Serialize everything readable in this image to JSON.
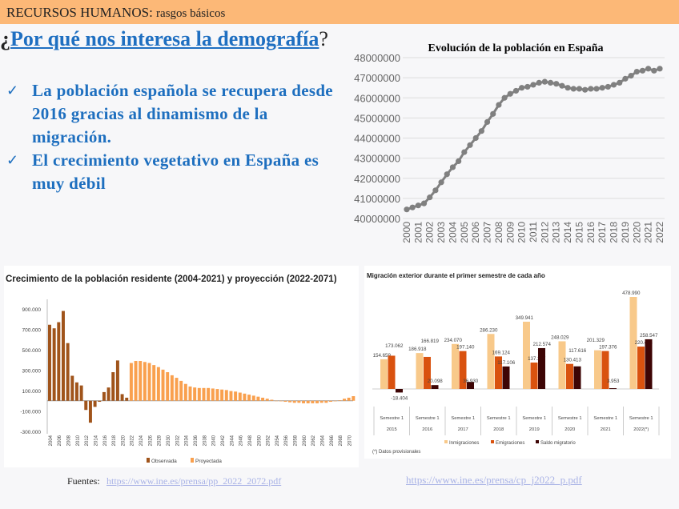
{
  "header": {
    "section": "RECURSOS HUMANOS:",
    "subtitle": "rasgos básicos",
    "bg": "#fcb877"
  },
  "slide_title": {
    "pre": "¿",
    "link": "Por qué nos interesa la demografía",
    "post": "?"
  },
  "bullets": [
    {
      "icon": "checkmark-icon",
      "text": "La población española se recupera desde 2016 gracias al dinamismo de la migración."
    },
    {
      "icon": "checkmark-icon",
      "text": "El crecimiento vegetativo en España es muy débil"
    }
  ],
  "sources": {
    "label": "Fuentes:",
    "link1": "https://www.ine.es/prensa/pp_2022_2072.pdf",
    "link2": "https://www.ine.es/prensa/cp_j2022_p.pdf"
  },
  "chart_data": [
    {
      "type": "line",
      "title": "Evolución de la población en España",
      "color": "#808080",
      "grid": true,
      "ylim": [
        40000000,
        48000000
      ],
      "yticks": [
        "48000000",
        "47000000",
        "46000000",
        "45000000",
        "44000000",
        "43000000",
        "42000000",
        "41000000",
        "40000000"
      ],
      "xticks": [
        "2000",
        "2001",
        "2002",
        "2003",
        "2004",
        "2005",
        "2006",
        "2007",
        "2008",
        "2009",
        "2010",
        "2011",
        "2012",
        "2013",
        "2014",
        "2015",
        "2016",
        "2017",
        "2018",
        "2019",
        "2020",
        "2021",
        "2022"
      ],
      "x": [
        2000,
        2000.5,
        2001,
        2001.5,
        2002,
        2002.5,
        2003,
        2003.5,
        2004,
        2004.5,
        2005,
        2005.5,
        2006,
        2006.5,
        2007,
        2007.5,
        2008,
        2008.5,
        2009,
        2009.5,
        2010,
        2010.5,
        2011,
        2011.5,
        2012,
        2012.5,
        2013,
        2013.5,
        2014,
        2014.5,
        2015,
        2015.5,
        2016,
        2016.5,
        2017,
        2017.5,
        2018,
        2018.5,
        2019,
        2019.5,
        2020,
        2020.5,
        2021,
        2021.5,
        2022
      ],
      "y": [
        40450000,
        40550000,
        40650000,
        40750000,
        41050000,
        41400000,
        41800000,
        42200000,
        42550000,
        42850000,
        43300000,
        43650000,
        44000000,
        44350000,
        44800000,
        45200000,
        45650000,
        46000000,
        46200000,
        46350000,
        46500000,
        46550000,
        46650000,
        46750000,
        46800000,
        46750000,
        46700000,
        46600000,
        46500000,
        46450000,
        46450000,
        46400000,
        46450000,
        46450000,
        46500000,
        46550000,
        46650000,
        46750000,
        46950000,
        47100000,
        47300000,
        47350000,
        47450000,
        47350000,
        47450000
      ]
    },
    {
      "type": "bar",
      "title": "Crecimiento de la población residente (2004-2021) y proyección (2022-2071)",
      "ylim": [
        -300000,
        1000000
      ],
      "yticks": [
        {
          "v": 900000,
          "l": "900.000"
        },
        {
          "v": 700000,
          "l": "700.000"
        },
        {
          "v": 500000,
          "l": "500.000"
        },
        {
          "v": 300000,
          "l": "300.000"
        },
        {
          "v": 100000,
          "l": "100.000"
        },
        {
          "v": -100000,
          "l": "-100.000"
        },
        {
          "v": -300000,
          "l": "-300.000"
        }
      ],
      "legend": "bottom",
      "series": [
        {
          "name": "Observada",
          "color": "#a0541b",
          "start_year": 2004,
          "values": [
            745000,
            710000,
            770000,
            880000,
            565000,
            245000,
            180000,
            150000,
            -90000,
            -215000,
            -60000,
            -10000,
            85000,
            130000,
            280000,
            395000,
            65000,
            30000
          ]
        },
        {
          "name": "Proyectada",
          "color": "#f9a04e",
          "start_year": 2022,
          "values": [
            370000,
            390000,
            390000,
            380000,
            370000,
            350000,
            330000,
            305000,
            280000,
            250000,
            225000,
            195000,
            165000,
            140000,
            130000,
            125000,
            125000,
            125000,
            120000,
            115000,
            110000,
            105000,
            95000,
            90000,
            80000,
            70000,
            60000,
            50000,
            40000,
            30000,
            20000,
            10000,
            0,
            -5000,
            -10000,
            -15000,
            -20000,
            -20000,
            -25000,
            -25000,
            -25000,
            -25000,
            -20000,
            -20000,
            -10000,
            -5000,
            5000,
            20000,
            30000,
            45000
          ]
        }
      ]
    },
    {
      "type": "bar",
      "title": "Migración exterior durante el primer semestre de cada año",
      "note": "(*) Datos provisionales",
      "legend": "bottom",
      "categories": [
        {
          "a": "Semestre 1",
          "b": "2015"
        },
        {
          "a": "Semestre 1",
          "b": "2016"
        },
        {
          "a": "Semestre 1",
          "b": "2017"
        },
        {
          "a": "Semestre 1",
          "b": "2018"
        },
        {
          "a": "Semestre 1",
          "b": "2019"
        },
        {
          "a": "Semestre 1",
          "b": "2020"
        },
        {
          "a": "Semestre 1",
          "b": "2021"
        },
        {
          "a": "Semestre 1",
          "b": "2022(*)"
        }
      ],
      "series": [
        {
          "name": "Inmigraciones",
          "color": "#f8c98a",
          "values": [
            154659,
            186918,
            234070,
            286230,
            349941,
            248029,
            201329,
            478990
          ],
          "labels": [
            "154.659",
            "186.918",
            "234.070",
            "286.230",
            "349.941",
            "248.029",
            "201.329",
            "478.990"
          ]
        },
        {
          "name": "Emigraciones",
          "color": "#d9520f",
          "values": [
            173062,
            166819,
            197140,
            169124,
            137367,
            130413,
            197376,
            220443
          ],
          "labels": [
            "173.062",
            "166.819",
            "197.140",
            "169.124",
            "137.367",
            "130.413",
            "197.376",
            "220.443"
          ]
        },
        {
          "name": "Saldo migratorio",
          "color": "#3d0505",
          "values": [
            -18404,
            20098,
            36930,
            117106,
            212574,
            117616,
            3953,
            258547
          ],
          "labels": [
            "-18.404",
            "20.098",
            "36.930",
            "117.106",
            "212.574",
            "117.616",
            "3.953",
            "258.547"
          ]
        }
      ]
    }
  ]
}
